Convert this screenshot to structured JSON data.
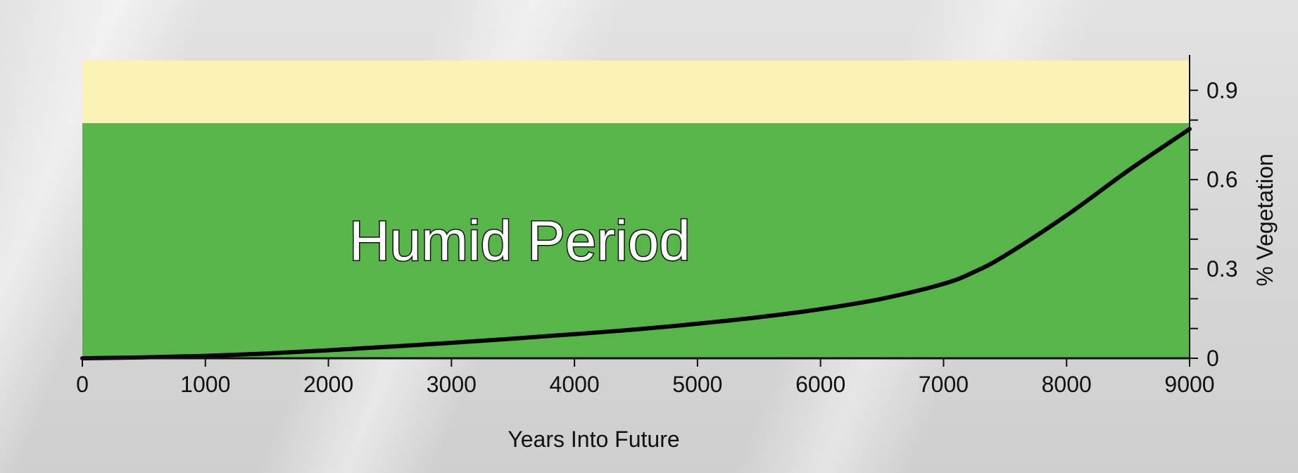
{
  "chart_data": {
    "type": "line",
    "title": "",
    "xlabel": "Years Into Future",
    "ylabel": "% Vegetation",
    "xlim": [
      0,
      9000
    ],
    "ylim": [
      0,
      1.0
    ],
    "x_ticks": [
      0,
      1000,
      2000,
      3000,
      4000,
      5000,
      6000,
      7000,
      8000,
      9000
    ],
    "x_tick_labels": [
      "0",
      "1000",
      "2000",
      "3000",
      "4000",
      "5000",
      "6000",
      "7000",
      "8000",
      "9000"
    ],
    "y_ticks": [
      0,
      0.3,
      0.6,
      0.9
    ],
    "y_tick_labels": [
      "0",
      "0.3",
      "0.6",
      "0.9"
    ],
    "y_axis_position": "right",
    "grid": false,
    "regions": [
      {
        "label": "Humid Period",
        "y_from": 0,
        "y_to": 0.79,
        "color": "#58b54a"
      },
      {
        "label": "",
        "y_from": 0.79,
        "y_to": 1.0,
        "color": "#fbf2b5"
      }
    ],
    "series": [
      {
        "color": "#000000",
        "x": [
          0,
          500,
          1000,
          1500,
          2000,
          2500,
          3000,
          3500,
          4000,
          4500,
          5000,
          5500,
          6000,
          6500,
          7000,
          7250,
          7500,
          8000,
          8500,
          9000
        ],
        "values": [
          0,
          0.003,
          0.008,
          0.016,
          0.027,
          0.039,
          0.052,
          0.066,
          0.081,
          0.097,
          0.116,
          0.138,
          0.165,
          0.2,
          0.25,
          0.29,
          0.345,
          0.48,
          0.63,
          0.77
        ]
      }
    ]
  }
}
